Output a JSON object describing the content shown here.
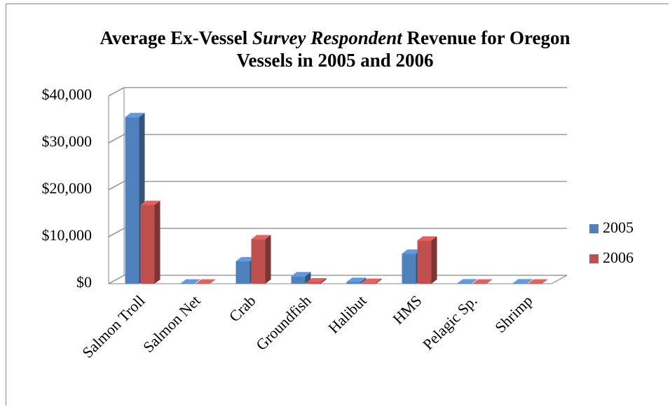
{
  "chart_data": {
    "type": "bar",
    "title": [
      "Average Ex-Vessel ",
      "Survey Respondent",
      " Revenue for Oregon Vessels in 2005 and 2006"
    ],
    "categories": [
      "Salmon Troll",
      "Salmon Net",
      "Crab",
      "Groundfish",
      "Halibut",
      "HMS",
      "Pelagic Sp.",
      "Shrimp"
    ],
    "series": [
      {
        "name": "2005",
        "color": "#4f81bd",
        "values": [
          35500,
          50,
          4800,
          1600,
          400,
          6400,
          100,
          100
        ]
      },
      {
        "name": "2006",
        "color": "#c0504d",
        "values": [
          16800,
          50,
          9500,
          300,
          200,
          9200,
          50,
          50
        ]
      }
    ],
    "ylim": [
      0,
      40000
    ],
    "yticks": [
      {
        "value": 0,
        "label": "$0"
      },
      {
        "value": 10000,
        "label": "$10,000"
      },
      {
        "value": 20000,
        "label": "$20,000"
      },
      {
        "value": 30000,
        "label": "$30,000"
      },
      {
        "value": 40000,
        "label": "$40,000"
      }
    ],
    "grid": true,
    "legend": "right"
  }
}
